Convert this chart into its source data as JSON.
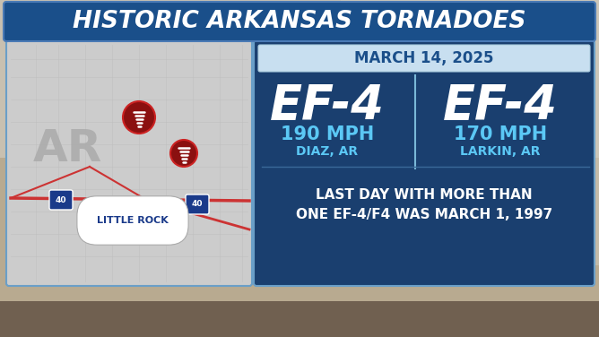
{
  "title": "HISTORIC ARKANSAS TORNADOES",
  "title_bg": "#1a4f8a",
  "title_color": "#ffffff",
  "date_label": "MARCH 14, 2025",
  "date_color": "#1b4f8a",
  "date_bg": "#c8dff0",
  "main_bg": "#1a3f6f",
  "left_panel_bg": "#cccccc",
  "left_panel_border": "#bbbbbb",
  "tornado1_rating": "EF-4",
  "tornado1_speed": "190 MPH",
  "tornado1_location": "DIAZ, AR",
  "tornado2_rating": "EF-4",
  "tornado2_speed": "170 MPH",
  "tornado2_location": "LARKIN, AR",
  "note_line1": "LAST DAY WITH MORE THAN",
  "note_line2": "ONE EF-4/F4 WAS MARCH 1, 1997",
  "ef_color": "#ffffff",
  "speed_color": "#5bc8f5",
  "location_color": "#5bc8f5",
  "note_color": "#ffffff",
  "ar_label": "AR",
  "ar_label_color": "#aaaaaa",
  "tornado_fill": "#8b1010",
  "tornado_border": "#cc2222",
  "divider_color": "#7ab8d8",
  "road_color": "#cc3333",
  "county_line_color": "#bbbbbb",
  "bg_top": "#b8b0a0",
  "bg_bottom": "#c8b888",
  "title_border": "#4a7ab5",
  "panel_border": "#6a9fc8"
}
